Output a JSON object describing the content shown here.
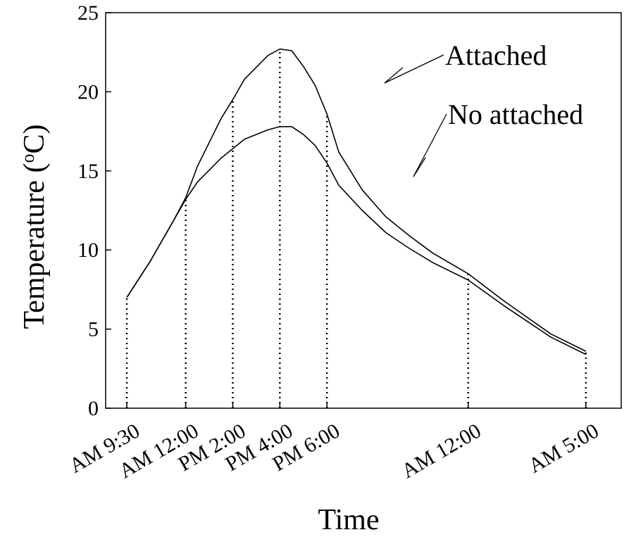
{
  "chart_data": {
    "type": "line",
    "title": "",
    "xlabel": "Time",
    "ylabel": "Temperature (",
    "ylabel_sup": "o",
    "ylabel_unit": "C)",
    "ylim": [
      0,
      25
    ],
    "yticks": [
      0,
      5,
      10,
      15,
      20,
      25
    ],
    "grid": false,
    "legend": "none",
    "x_ticks": [
      "AM 9:30",
      "AM 12:00",
      "PM 2:00",
      "PM 4:00",
      "PM 6:00",
      "AM 12:00",
      "AM 5:00"
    ],
    "x_tick_values": [
      0,
      2.5,
      4.5,
      6.5,
      8.5,
      14.5,
      19.5
    ],
    "xlim": [
      -0.9,
      21.0
    ],
    "series": [
      {
        "name": "Attached",
        "x": [
          0,
          1,
          2,
          2.5,
          3,
          4,
          4.5,
          5,
          6,
          6.5,
          7,
          7.5,
          8,
          8.5,
          9,
          10,
          11,
          12,
          13,
          14.5,
          16,
          18,
          19.5
        ],
        "y": [
          7.0,
          9.3,
          11.9,
          13.3,
          15.3,
          18.3,
          19.5,
          20.8,
          22.3,
          22.7,
          22.6,
          21.6,
          20.4,
          18.6,
          16.2,
          13.8,
          12.1,
          10.9,
          9.8,
          8.5,
          6.8,
          4.7,
          3.6
        ]
      },
      {
        "name": "No attached",
        "x": [
          0,
          1,
          2,
          2.5,
          3,
          4,
          4.5,
          5,
          6,
          6.5,
          7,
          7.5,
          8,
          8.5,
          9,
          10,
          11,
          12,
          13,
          14.5,
          16,
          18,
          19.5
        ],
        "y": [
          7.0,
          9.3,
          11.9,
          13.2,
          14.3,
          15.8,
          16.4,
          17.0,
          17.6,
          17.8,
          17.8,
          17.3,
          16.6,
          15.5,
          14.1,
          12.5,
          11.1,
          10.1,
          9.2,
          8.1,
          6.5,
          4.5,
          3.4
        ]
      }
    ],
    "annotations": [
      "Attached",
      "No attached"
    ]
  }
}
